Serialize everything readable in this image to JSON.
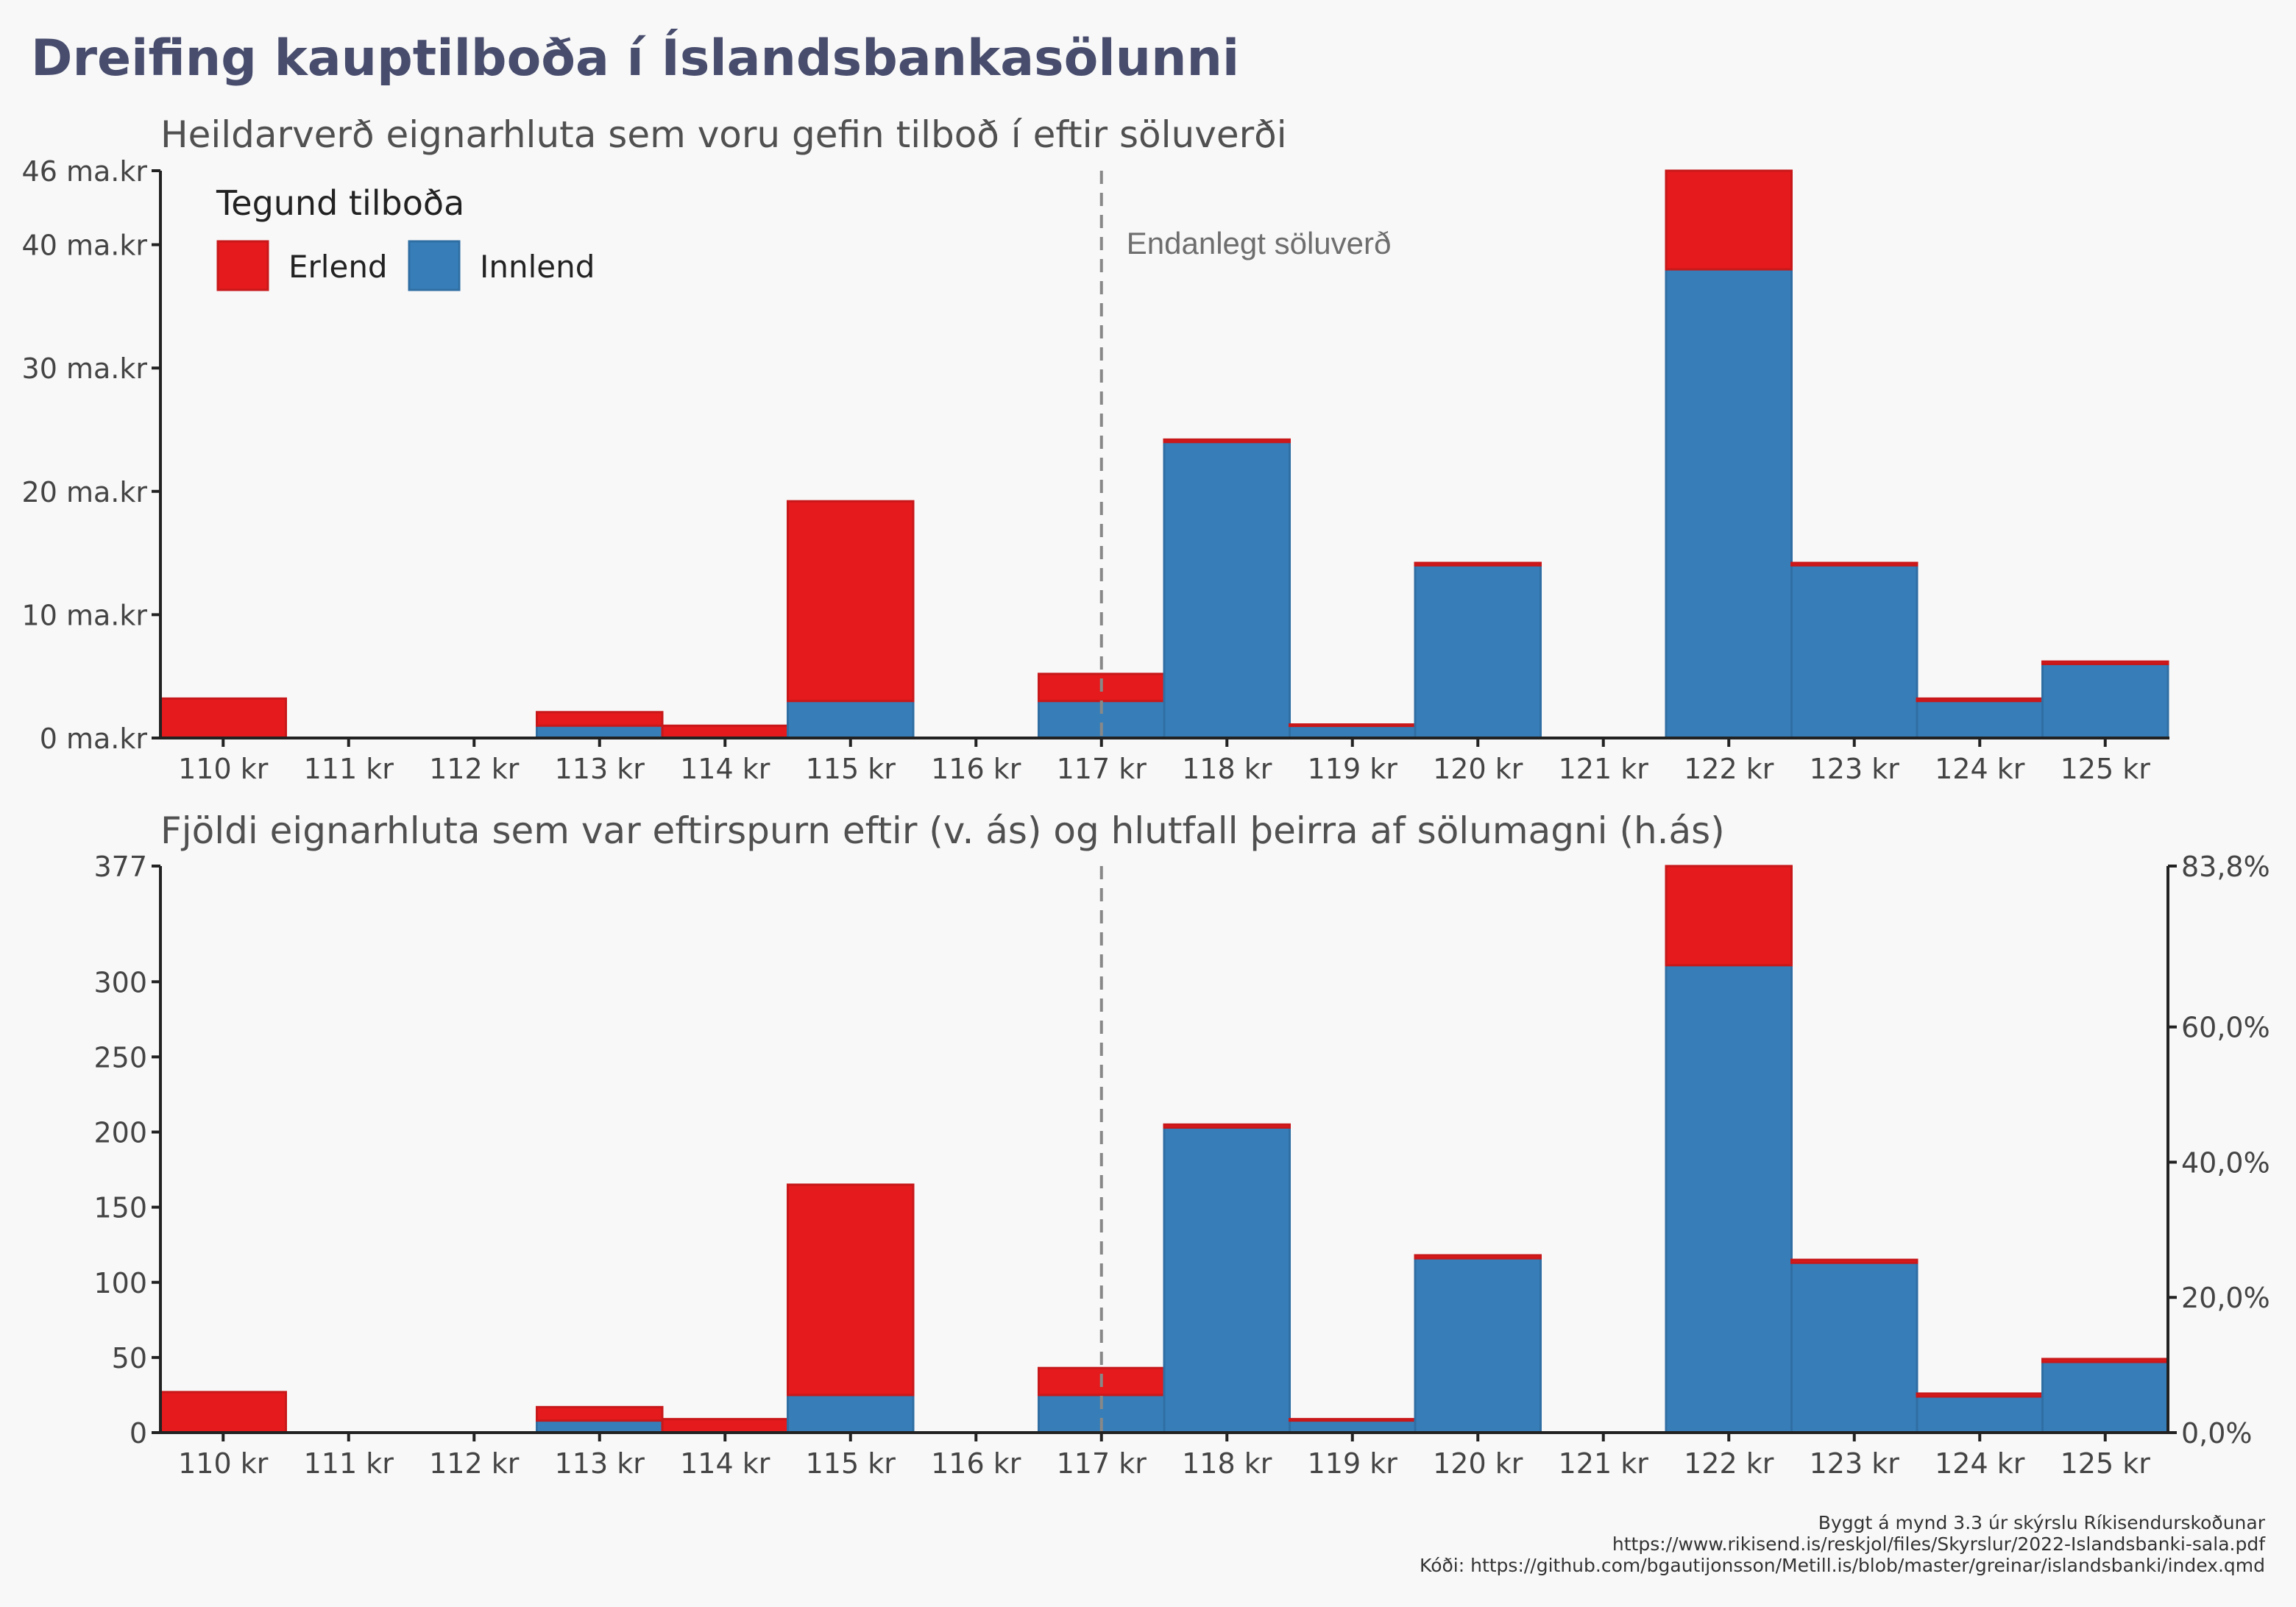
{
  "title": "Dreifing kauptilboða í Íslandsbankasölunni",
  "legend": {
    "title": "Tegund tilboða",
    "items": [
      {
        "label": "Erlend",
        "color": "#e41a1c"
      },
      {
        "label": "Innlend",
        "color": "#377eb8"
      }
    ]
  },
  "caption": [
    "Byggt á mynd 3.3 úr skýrslu Ríkisendurskoðunar",
    "https://www.rikisend.is/reskjol/files/Skyrslur/2022-Islandsbanki-sala.pdf",
    "Kóði: https://github.com/bgautijonsson/Metill.is/blob/master/greinar/islandsbanki/index.qmd"
  ],
  "colors": {
    "erlend": "#e41a1c",
    "innlend": "#377eb8",
    "axis": "#222222",
    "ref_line": "#888888"
  },
  "chart_data": [
    {
      "type": "bar",
      "stacked": true,
      "subtitle": "Heildarverð eignarhluta sem voru gefin tilboð í eftir söluverði",
      "categories": [
        "110 kr",
        "111 kr",
        "112 kr",
        "113 kr",
        "114 kr",
        "115 kr",
        "116 kr",
        "117 kr",
        "118 kr",
        "119 kr",
        "120 kr",
        "121 kr",
        "122 kr",
        "123 kr",
        "124 kr",
        "125 kr"
      ],
      "series": [
        {
          "name": "Innlend",
          "color": "#377eb8",
          "values": [
            0,
            0,
            0,
            1,
            0,
            3,
            0,
            3,
            24,
            1,
            14,
            0,
            38,
            14,
            3,
            6
          ]
        },
        {
          "name": "Erlend",
          "color": "#e41a1c",
          "values": [
            3.2,
            0,
            0,
            1.1,
            1,
            16.2,
            0,
            2.2,
            0.2,
            0.1,
            0.2,
            0,
            8,
            0.2,
            0.2,
            0.2
          ]
        }
      ],
      "ylim": [
        0,
        46
      ],
      "yticks": [
        {
          "value": 0,
          "label": "0 ma.kr"
        },
        {
          "value": 10,
          "label": "10 ma.kr"
        },
        {
          "value": 20,
          "label": "20 ma.kr"
        },
        {
          "value": 30,
          "label": "30 ma.kr"
        },
        {
          "value": 40,
          "label": "40 ma.kr"
        },
        {
          "value": 46,
          "label": "46 ma.kr"
        }
      ],
      "reference_line": {
        "category": "117 kr",
        "label": "Endanlegt söluverð",
        "style": "dashed"
      },
      "legend_position": "top-left",
      "grid": false
    },
    {
      "type": "bar",
      "stacked": true,
      "subtitle": "Fjöldi eignarhluta sem var eftirspurn eftir (v. ás) og hlutfall þeirra af sölumagni (h.ás)",
      "categories": [
        "110 kr",
        "111 kr",
        "112 kr",
        "113 kr",
        "114 kr",
        "115 kr",
        "116 kr",
        "117 kr",
        "118 kr",
        "119 kr",
        "120 kr",
        "121 kr",
        "122 kr",
        "123 kr",
        "124 kr",
        "125 kr"
      ],
      "series": [
        {
          "name": "Innlend",
          "color": "#377eb8",
          "values": [
            0,
            0,
            0,
            8,
            0,
            25,
            0,
            25,
            203,
            8,
            116,
            0,
            311,
            113,
            24,
            47
          ]
        },
        {
          "name": "Erlend",
          "color": "#e41a1c",
          "values": [
            27,
            0,
            0,
            9,
            9,
            140,
            0,
            18,
            2,
            1,
            2,
            0,
            66,
            2,
            2,
            2
          ]
        }
      ],
      "ylim": [
        0,
        377
      ],
      "yticks": [
        {
          "value": 0,
          "label": "0"
        },
        {
          "value": 50,
          "label": "50"
        },
        {
          "value": 100,
          "label": "100"
        },
        {
          "value": 150,
          "label": "150"
        },
        {
          "value": 200,
          "label": "200"
        },
        {
          "value": 250,
          "label": "250"
        },
        {
          "value": 300,
          "label": "300"
        },
        {
          "value": 377,
          "label": "377"
        }
      ],
      "y2lim": [
        0,
        83.8
      ],
      "y2ticks": [
        {
          "value": 0,
          "label": "0,0%"
        },
        {
          "value": 20,
          "label": "20,0%"
        },
        {
          "value": 40,
          "label": "40,0%"
        },
        {
          "value": 60,
          "label": "60,0%"
        },
        {
          "value": 83.8,
          "label": "83,8%"
        }
      ],
      "reference_line": {
        "category": "117 kr",
        "style": "dashed"
      },
      "grid": false
    }
  ]
}
